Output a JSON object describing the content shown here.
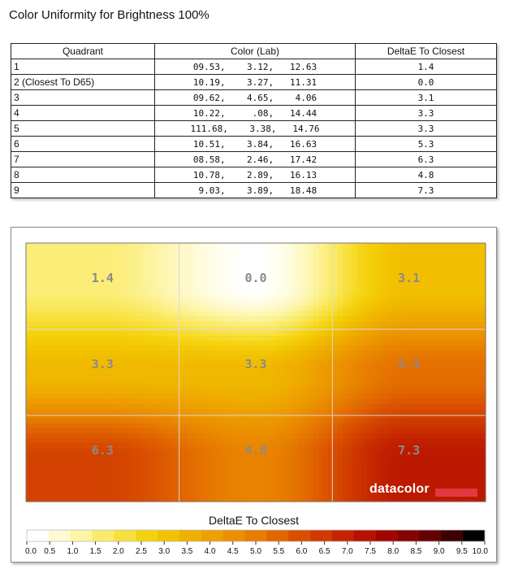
{
  "title": "Color Uniformity for Brightness 100%",
  "table": {
    "headers": [
      "Quadrant",
      "Color (Lab)",
      "DeltaE To Closest"
    ],
    "rows": [
      {
        "quadrant": "1",
        "lab": "09.53,    3.12,   12.63",
        "delta": "1.4"
      },
      {
        "quadrant": "2 (Closest To D65)",
        "lab": "10.19,    3.27,   11.31",
        "delta": "0.0"
      },
      {
        "quadrant": "3",
        "lab": "09.62,    4.65,    4.06",
        "delta": "3.1"
      },
      {
        "quadrant": "4",
        "lab": "10.22,     .08,   14.44",
        "delta": "3.3"
      },
      {
        "quadrant": "5",
        "lab": "111.68,    3.38,   14.76",
        "delta": "3.3"
      },
      {
        "quadrant": "6",
        "lab": "10.51,    3.84,   16.63",
        "delta": "5.3"
      },
      {
        "quadrant": "7",
        "lab": "08.58,    2.46,   17.42",
        "delta": "6.3"
      },
      {
        "quadrant": "8",
        "lab": "10.78,    2.89,   16.13",
        "delta": "4.8"
      },
      {
        "quadrant": "9",
        "lab": " 9.03,    3.89,   18.48",
        "delta": "7.3"
      }
    ]
  },
  "chart_data": {
    "type": "heatmap",
    "grid": {
      "rows": 3,
      "cols": 3
    },
    "values": [
      [
        1.4,
        0.0,
        3.1
      ],
      [
        3.3,
        3.3,
        5.3
      ],
      [
        6.3,
        4.8,
        7.3
      ]
    ],
    "value_labels": [
      [
        "1.4",
        "0.0",
        "3.1"
      ],
      [
        "3.3",
        "3.3",
        "5.3"
      ],
      [
        "6.3",
        "4.8",
        "7.3"
      ]
    ],
    "colorbar": {
      "title": "DeltaE To Closest",
      "min": 0.0,
      "max": 10.0,
      "step": 0.5,
      "tick_labels": [
        "0.0",
        "0.5",
        "1.0",
        "1.5",
        "2.0",
        "2.5",
        "3.0",
        "3.5",
        "4.0",
        "4.5",
        "5.0",
        "5.5",
        "6.0",
        "6.5",
        "7.0",
        "7.5",
        "8.0",
        "8.5",
        "9.0",
        "9.5",
        "10.0"
      ],
      "colors": [
        "#ffffff",
        "#fefbd4",
        "#fdf4a5",
        "#fbeb6d",
        "#f8e03c",
        "#f5d20f",
        "#f2c200",
        "#efb100",
        "#eda000",
        "#eb8f00",
        "#e77c00",
        "#e16600",
        "#d94f00",
        "#cf3a00",
        "#c42400",
        "#b61200",
        "#9f0700",
        "#850300",
        "#620100",
        "#3b0000",
        "#000000"
      ]
    },
    "logo": "datacolor",
    "accent_colors": {
      "logo_bar": "#e2383f"
    }
  }
}
